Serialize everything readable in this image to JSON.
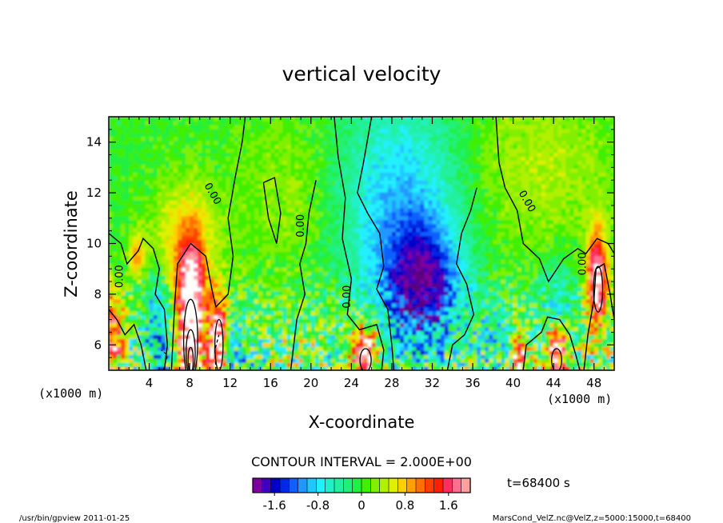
{
  "chart_data": {
    "type": "heatmap",
    "title": "vertical velocity",
    "xlabel": "X-coordinate",
    "ylabel": "Z-coordinate",
    "x_unit_note": "(x1000 m)",
    "y_unit_note": "(x1000 m)",
    "xlim": [
      0,
      50
    ],
    "ylim": [
      5,
      15
    ],
    "x_ticks": [
      4,
      8,
      12,
      16,
      20,
      24,
      28,
      32,
      36,
      40,
      44,
      48
    ],
    "y_ticks": [
      6,
      8,
      10,
      12,
      14
    ],
    "contour_interval_label": "CONTOUR INTERVAL = 2.000E+00",
    "contour_label": "0.00",
    "time_label": "t=68400 s",
    "colorbar": {
      "tick_labels": [
        "-1.6",
        "-0.8",
        "0",
        "0.8",
        "1.6"
      ],
      "tick_values": [
        -1.6,
        -0.8,
        0,
        0.8,
        1.6
      ],
      "range": [
        -2.0,
        2.0
      ],
      "colors": [
        "#7f00a0",
        "#4000c0",
        "#0000c8",
        "#0028e6",
        "#1060ff",
        "#2098ff",
        "#20c8ff",
        "#20f0ff",
        "#20f0c8",
        "#20f0a0",
        "#20f078",
        "#20f040",
        "#40f000",
        "#80f000",
        "#b0f000",
        "#e0f000",
        "#ffd000",
        "#ffa000",
        "#ff7000",
        "#ff4000",
        "#ff2000",
        "#ff3060",
        "#ff7090",
        "#ffa0a0"
      ]
    },
    "features": [
      {
        "x": 8,
        "z_top": 9.3,
        "sign": "positive",
        "strength": "strong"
      },
      {
        "x": 11,
        "z_top": 7.8,
        "sign": "positive",
        "strength": "strong"
      },
      {
        "x": 4.6,
        "z_top": 7.2,
        "sign": "negative",
        "strength": "moderate"
      },
      {
        "x": 31,
        "z_top": 10,
        "sign": "negative",
        "strength": "moderate"
      },
      {
        "x": 25.5,
        "z_top": 6.5,
        "sign": "positive",
        "strength": "strong"
      },
      {
        "x": 48.3,
        "z_top": 9.5,
        "sign": "positive",
        "strength": "strong"
      },
      {
        "x": 44.3,
        "z_top": 6.6,
        "sign": "positive",
        "strength": "strong"
      }
    ]
  },
  "footer": {
    "left": "/usr/bin/gpview  2011-01-25",
    "right": "MarsCond_VelZ.nc@VelZ,z=5000:15000,t=68400"
  }
}
